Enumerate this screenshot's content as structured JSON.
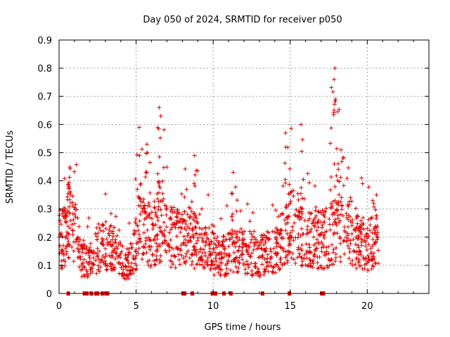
{
  "chart_data": {
    "type": "scatter",
    "title": "Day 050 of 2024, SRMTID for receiver p050",
    "xlabel": "GPS time / hours",
    "ylabel": "SRMTID / TECUs",
    "xlim": [
      0,
      24
    ],
    "ylim": [
      0,
      0.9
    ],
    "xticks": [
      0,
      5,
      10,
      15,
      20
    ],
    "xtick_labels": [
      "0",
      "5",
      "10",
      "15",
      "20"
    ],
    "yticks": [
      0,
      0.1,
      0.2,
      0.3,
      0.4,
      0.5,
      0.6,
      0.7,
      0.8,
      0.9
    ],
    "ytick_labels": [
      "0",
      "0.1",
      "0.2",
      "0.3",
      "0.4",
      "0.5",
      "0.6",
      "0.7",
      "0.8",
      "0.9"
    ],
    "grid": true,
    "marker": "plus",
    "color": "#e00000",
    "series_extent_hours": [
      0.0,
      20.75
    ],
    "typical_range": [
      0.05,
      0.3
    ],
    "peaks": [
      {
        "x": 0.65,
        "y": 0.38
      },
      {
        "x": 5.2,
        "y": 0.59
      },
      {
        "x": 5.7,
        "y": 0.53
      },
      {
        "x": 6.5,
        "y": 0.66
      },
      {
        "x": 6.6,
        "y": 0.63
      },
      {
        "x": 8.8,
        "y": 0.49
      },
      {
        "x": 11.3,
        "y": 0.43
      },
      {
        "x": 14.7,
        "y": 0.57
      },
      {
        "x": 15.7,
        "y": 0.6
      },
      {
        "x": 17.9,
        "y": 0.8
      },
      {
        "x": 17.85,
        "y": 0.76
      },
      {
        "x": 17.95,
        "y": 0.69
      },
      {
        "x": 18.3,
        "y": 0.51
      },
      {
        "x": 20.6,
        "y": 0.35
      }
    ],
    "zero_markers_x": [
      0.6,
      1.65,
      1.8,
      2.1,
      2.4,
      2.5,
      2.8,
      3.05,
      3.15,
      8.05,
      8.15,
      8.65,
      9.95,
      10.05,
      10.15,
      10.7,
      11.15,
      13.2,
      14.95,
      17.05,
      17.15
    ]
  }
}
